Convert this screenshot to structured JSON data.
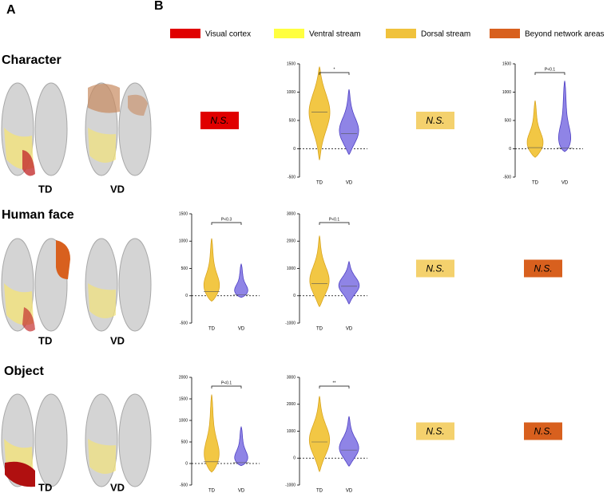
{
  "panel_labels": [
    "A",
    "B"
  ],
  "legend": [
    {
      "name": "Visual cortex",
      "color": "#e00000"
    },
    {
      "name": "Ventral stream",
      "color": "#ffff40"
    },
    {
      "name": "Dorsal stream",
      "color": "#f0c23c"
    },
    {
      "name": "Beyond network areas",
      "color": "#d8601e"
    }
  ],
  "rows": [
    {
      "title": "Character",
      "groups": [
        "TD",
        "VD"
      ],
      "cells": [
        {
          "kind": "ns",
          "text": "N.S."
        },
        {
          "kind": "violin",
          "annotation": "*",
          "ylim": [
            -500,
            1500
          ],
          "yticks": [
            -500,
            0,
            500,
            1000,
            1500
          ],
          "violins": [
            {
              "name": "TD",
              "min": -200,
              "max": 1450,
              "median": 650
            },
            {
              "name": "VD",
              "min": -100,
              "max": 1050,
              "median": 270
            }
          ]
        },
        {
          "kind": "ns",
          "text": "N.S."
        },
        {
          "kind": "violin",
          "annotation": "P<0.1",
          "ylim": [
            -500,
            1500
          ],
          "yticks": [
            -500,
            0,
            500,
            1000,
            1500
          ],
          "violins": [
            {
              "name": "TD",
              "min": -150,
              "max": 850,
              "median": 20
            },
            {
              "name": "VD",
              "min": -50,
              "max": 1200,
              "median": 10
            }
          ]
        }
      ]
    },
    {
      "title": "Human face",
      "groups": [
        "TD",
        "VD"
      ],
      "cells": [
        {
          "kind": "violin",
          "annotation": "P<0.3",
          "ylim": [
            -500,
            1500
          ],
          "yticks": [
            -500,
            0,
            500,
            1000,
            1500
          ],
          "violins": [
            {
              "name": "TD",
              "min": -100,
              "max": 1050,
              "median": 80
            },
            {
              "name": "VD",
              "min": -30,
              "max": 580,
              "median": 20
            }
          ]
        },
        {
          "kind": "violin",
          "annotation": "P<0.1",
          "ylim": [
            -1000,
            3000
          ],
          "yticks": [
            -1000,
            0,
            1000,
            2000,
            3000
          ],
          "violins": [
            {
              "name": "TD",
              "min": -400,
              "max": 2200,
              "median": 450
            },
            {
              "name": "VD",
              "min": -300,
              "max": 1250,
              "median": 350
            }
          ]
        },
        {
          "kind": "ns",
          "text": "N.S."
        },
        {
          "kind": "ns",
          "text": "N.S."
        }
      ]
    },
    {
      "title": "Object",
      "groups": [
        "TD",
        "VD"
      ],
      "cells": [
        {
          "kind": "violin",
          "annotation": "P<0.1",
          "ylim": [
            -500,
            2000
          ],
          "yticks": [
            -500,
            0,
            500,
            1000,
            1500,
            2000
          ],
          "violins": [
            {
              "name": "TD",
              "min": -200,
              "max": 1600,
              "median": 40
            },
            {
              "name": "VD",
              "min": -50,
              "max": 850,
              "median": 20
            }
          ]
        },
        {
          "kind": "violin",
          "annotation": "**",
          "ylim": [
            -1000,
            3000
          ],
          "yticks": [
            -1000,
            0,
            1000,
            2000,
            3000
          ],
          "violins": [
            {
              "name": "TD",
              "min": -500,
              "max": 2300,
              "median": 600
            },
            {
              "name": "VD",
              "min": -300,
              "max": 1550,
              "median": 300
            }
          ]
        },
        {
          "kind": "ns",
          "text": "N.S."
        },
        {
          "kind": "ns",
          "text": "N.S."
        }
      ]
    }
  ]
}
